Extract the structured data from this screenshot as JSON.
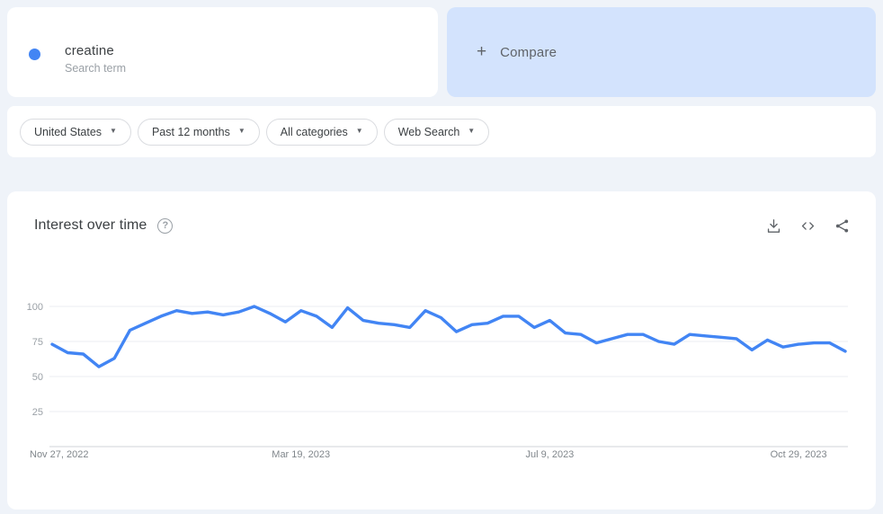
{
  "page": {
    "background": "#eff3f9"
  },
  "term_card": {
    "term": "creatine",
    "type_label": "Search term",
    "dot_color": "#4285f4"
  },
  "compare_card": {
    "plus_glyph": "+",
    "label": "Compare",
    "background": "#d3e3fd"
  },
  "filters": {
    "caret_glyph": "▼",
    "items": [
      {
        "label": "United States"
      },
      {
        "label": "Past 12 months"
      },
      {
        "label": "All categories"
      },
      {
        "label": "Web Search"
      }
    ]
  },
  "chart_card": {
    "title": "Interest over time",
    "help_glyph": "?"
  },
  "chart_data": {
    "type": "line",
    "title": "Interest over time",
    "series_name": "creatine",
    "line_color": "#4285f4",
    "grid": true,
    "ylim": [
      0,
      100
    ],
    "ytick_labels": [
      "100",
      "75",
      "50",
      "25"
    ],
    "yticks": [
      100,
      75,
      50,
      25
    ],
    "xticks": [
      {
        "index": 0,
        "label": "Nov 27, 2022"
      },
      {
        "index": 16,
        "label": "Mar 19, 2023"
      },
      {
        "index": 32,
        "label": "Jul 9, 2023"
      },
      {
        "index": 48,
        "label": "Oct 29, 2023"
      }
    ],
    "values": [
      73,
      67,
      66,
      57,
      63,
      83,
      88,
      93,
      97,
      95,
      96,
      94,
      96,
      100,
      95,
      89,
      97,
      93,
      85,
      99,
      90,
      88,
      87,
      85,
      97,
      92,
      82,
      87,
      88,
      93,
      93,
      85,
      90,
      81,
      80,
      74,
      77,
      80,
      80,
      75,
      73,
      80,
      79,
      78,
      77,
      69,
      76,
      71,
      73,
      74,
      74,
      68
    ]
  }
}
